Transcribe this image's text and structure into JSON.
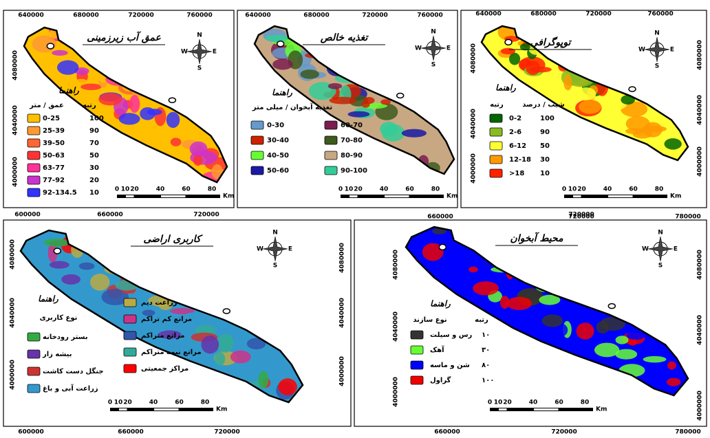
{
  "compass": [
    "N",
    "E",
    "S",
    "W"
  ],
  "panels": [
    {
      "title": "عمق آب زیرزمینی",
      "legend_title": "راهنما",
      "legend_headers": [
        "عمق / متر",
        "رتبه"
      ],
      "legend_items": [
        {
          "label": "0-25",
          "rank": "100",
          "color": "#ffc000"
        },
        {
          "label": "25-39",
          "rank": "90",
          "color": "#ff9933"
        },
        {
          "label": "39-50",
          "rank": "70",
          "color": "#ff6633"
        },
        {
          "label": "50-63",
          "rank": "50",
          "color": "#ff3333"
        },
        {
          "label": "63-77",
          "rank": "30",
          "color": "#ff3399"
        },
        {
          "label": "77-92",
          "rank": "20",
          "color": "#cc33cc"
        },
        {
          "label": "92-134.5",
          "rank": "10",
          "color": "#3333ff"
        }
      ],
      "coords_top": [
        "640000",
        "680000",
        "720000",
        "760000"
      ],
      "coords_left": [
        "4080000",
        "4040000",
        "4000000"
      ],
      "coords_right": [],
      "coords_bottom": [],
      "scale_labels": [
        "0",
        "10",
        "20",
        "40",
        "60",
        "80"
      ],
      "scale_unit": "Km"
    },
    {
      "title": "تغذیه خالص",
      "legend_title": "راهنما",
      "legend_headers": [
        "تغذیه آبخوان / میلی متر"
      ],
      "legend_items": [
        {
          "label": "0-30",
          "color": "#6699cc"
        },
        {
          "label": "30-40",
          "color": "#cc2200"
        },
        {
          "label": "40-50",
          "color": "#66ff33"
        },
        {
          "label": "50-60",
          "color": "#1a1aa6"
        },
        {
          "label": "60-70",
          "color": "#7a1f4f"
        },
        {
          "label": "70-80",
          "color": "#3d5a1f"
        },
        {
          "label": "80-90",
          "color": "#c8a882"
        },
        {
          "label": "90-100",
          "color": "#33cc99"
        }
      ],
      "coords_top": [
        "640000",
        "680000",
        "720000",
        "760000"
      ],
      "coords_left": [],
      "coords_right": [],
      "coords_bottom": [],
      "scale_labels": [
        "0",
        "10",
        "20",
        "40",
        "60",
        "80"
      ],
      "scale_unit": "Km"
    },
    {
      "title": "توپوگرافی",
      "legend_title": "راهنما",
      "legend_headers": [
        "رتبه",
        "شیب / درصد"
      ],
      "legend_items": [
        {
          "label": "0-2",
          "rank": "100",
          "color": "#006600"
        },
        {
          "label": "2-6",
          "rank": "90",
          "color": "#88bb22"
        },
        {
          "label": "6-12",
          "rank": "50",
          "color": "#ffff33"
        },
        {
          "label": "12-18",
          "rank": "30",
          "color": "#ff9900"
        },
        {
          "label": ">18",
          "rank": "10",
          "color": "#ff2200"
        }
      ],
      "coords_top": [
        "640000",
        "680000",
        "720000",
        "760000"
      ],
      "coords_left": [
        "4080000",
        "4040000",
        "4000000"
      ],
      "coords_right": [
        "4080000",
        "4040000",
        "4000000"
      ],
      "coords_bottom": [
        "720000"
      ],
      "scale_labels": [
        "0",
        "10",
        "20",
        "40",
        "60",
        "80"
      ],
      "scale_unit": "Km"
    },
    {
      "title": "کاربری اراضی",
      "legend_title": "راهنما",
      "legend_headers": [
        "نوع کاربری"
      ],
      "legend_items": [
        {
          "label": "بستر رودخانه",
          "color": "#33aa44"
        },
        {
          "label": "بیشه زار",
          "color": "#6633aa"
        },
        {
          "label": "جنگل دست کاشت",
          "color": "#cc3333"
        },
        {
          "label": "زراعت آبی و باغ",
          "color": "#3399cc"
        },
        {
          "label": "زراعت دیم",
          "color": "#bbaa44"
        },
        {
          "label": "مراتع کم تراکم",
          "color": "#cc3388"
        },
        {
          "label": "مراتع متراکم",
          "color": "#3355aa"
        },
        {
          "label": "مراتع نیمه متراکم",
          "color": "#33aa99"
        },
        {
          "label": "مراکز جمعیتی",
          "color": "#ff0000"
        }
      ],
      "coords_top": [
        "600000",
        "660000",
        "720000"
      ],
      "coords_left": [
        "4080000",
        "4040000",
        "4000000"
      ],
      "coords_right": [
        "4080000",
        "4040000",
        "4000000"
      ],
      "coords_bottom": [
        "600000",
        "660000",
        "720000"
      ],
      "scale_labels": [
        "0",
        "10",
        "20",
        "40",
        "60",
        "80"
      ],
      "scale_unit": "Km"
    },
    {
      "title": "محیط آبخوان",
      "legend_title": "راهنما",
      "legend_headers": [
        "نوع سازند",
        "رتبه"
      ],
      "legend_items": [
        {
          "label": "رس و سیلت",
          "rank": "۱۰",
          "color": "#333333"
        },
        {
          "label": "آهک",
          "rank": "۳۰",
          "color": "#66ff33"
        },
        {
          "label": "شن و ماسه",
          "rank": "۸۰",
          "color": "#0000ff"
        },
        {
          "label": "گراول",
          "rank": "۱۰۰",
          "color": "#ee0000"
        }
      ],
      "coords_top": [
        "660000",
        "720000",
        "780000"
      ],
      "coords_left": [
        "4080000",
        "4040000",
        "4000000"
      ],
      "coords_right": [
        "4080000",
        "4040000",
        "4000000"
      ],
      "coords_bottom": [
        "660000",
        "720000",
        "780000"
      ],
      "scale_labels": [
        "0",
        "10",
        "20",
        "40",
        "60",
        "80"
      ],
      "scale_unit": "Km"
    }
  ]
}
